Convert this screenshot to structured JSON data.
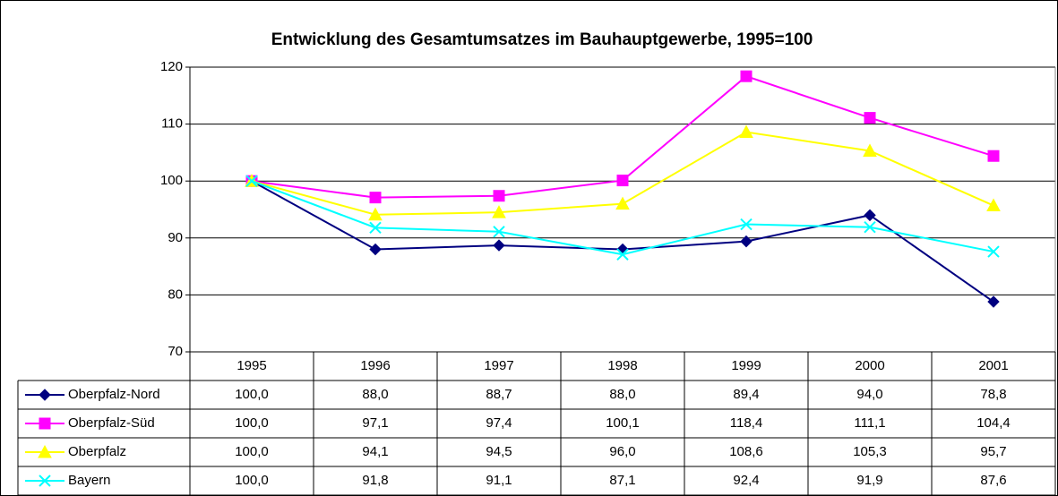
{
  "chart_data": {
    "type": "line",
    "title": "Entwicklung des Gesamtumsatzes im Bauhauptgewerbe, 1995=100",
    "categories": [
      "1995",
      "1996",
      "1997",
      "1998",
      "1999",
      "2000",
      "2001"
    ],
    "series": [
      {
        "name": "Oberpfalz-Nord",
        "color": "#000080",
        "marker": "diamond",
        "values": [
          100.0,
          88.0,
          88.7,
          88.0,
          89.4,
          94.0,
          78.8
        ],
        "value_labels": [
          "100,0",
          "88,0",
          "88,7",
          "88,0",
          "89,4",
          "94,0",
          "78,8"
        ]
      },
      {
        "name": "Oberpfalz-Süd",
        "color": "#ff00ff",
        "marker": "square",
        "values": [
          100.0,
          97.1,
          97.4,
          100.1,
          118.4,
          111.1,
          104.4
        ],
        "value_labels": [
          "100,0",
          "97,1",
          "97,4",
          "100,1",
          "118,4",
          "111,1",
          "104,4"
        ]
      },
      {
        "name": "Oberpfalz",
        "color": "#ffff00",
        "marker": "triangle",
        "values": [
          100.0,
          94.1,
          94.5,
          96.0,
          108.6,
          105.3,
          95.7
        ],
        "value_labels": [
          "100,0",
          "94,1",
          "94,5",
          "96,0",
          "108,6",
          "105,3",
          "95,7"
        ]
      },
      {
        "name": "Bayern",
        "color": "#00ffff",
        "marker": "x",
        "values": [
          100.0,
          91.8,
          91.1,
          87.1,
          92.4,
          91.9,
          87.6
        ],
        "value_labels": [
          "100,0",
          "91,8",
          "91,1",
          "87,1",
          "92,4",
          "91,9",
          "87,6"
        ]
      }
    ],
    "ylim": [
      70,
      120
    ],
    "yticks": [
      70,
      80,
      90,
      100,
      110,
      120
    ],
    "grid": true
  }
}
